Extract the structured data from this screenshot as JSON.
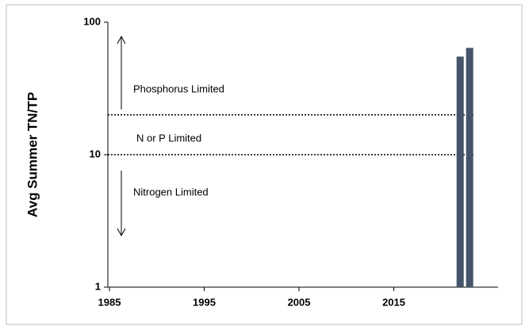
{
  "chart_data": {
    "type": "bar",
    "y_label": "Avg Summer TN/TP",
    "x": [
      2022,
      2023
    ],
    "values": [
      55,
      64
    ],
    "color": "#44546a",
    "xlim": [
      1985,
      2026
    ],
    "xticks": [
      1985,
      1995,
      2005,
      2015
    ],
    "ylim": [
      1,
      100
    ],
    "yticks": [
      1,
      10,
      100
    ],
    "log_y": true,
    "grid": false,
    "reference_lines": [
      20,
      10
    ],
    "annotations": [
      "Phosphorus Limited",
      "N or P Limited",
      "Nitrogen Limited"
    ]
  }
}
